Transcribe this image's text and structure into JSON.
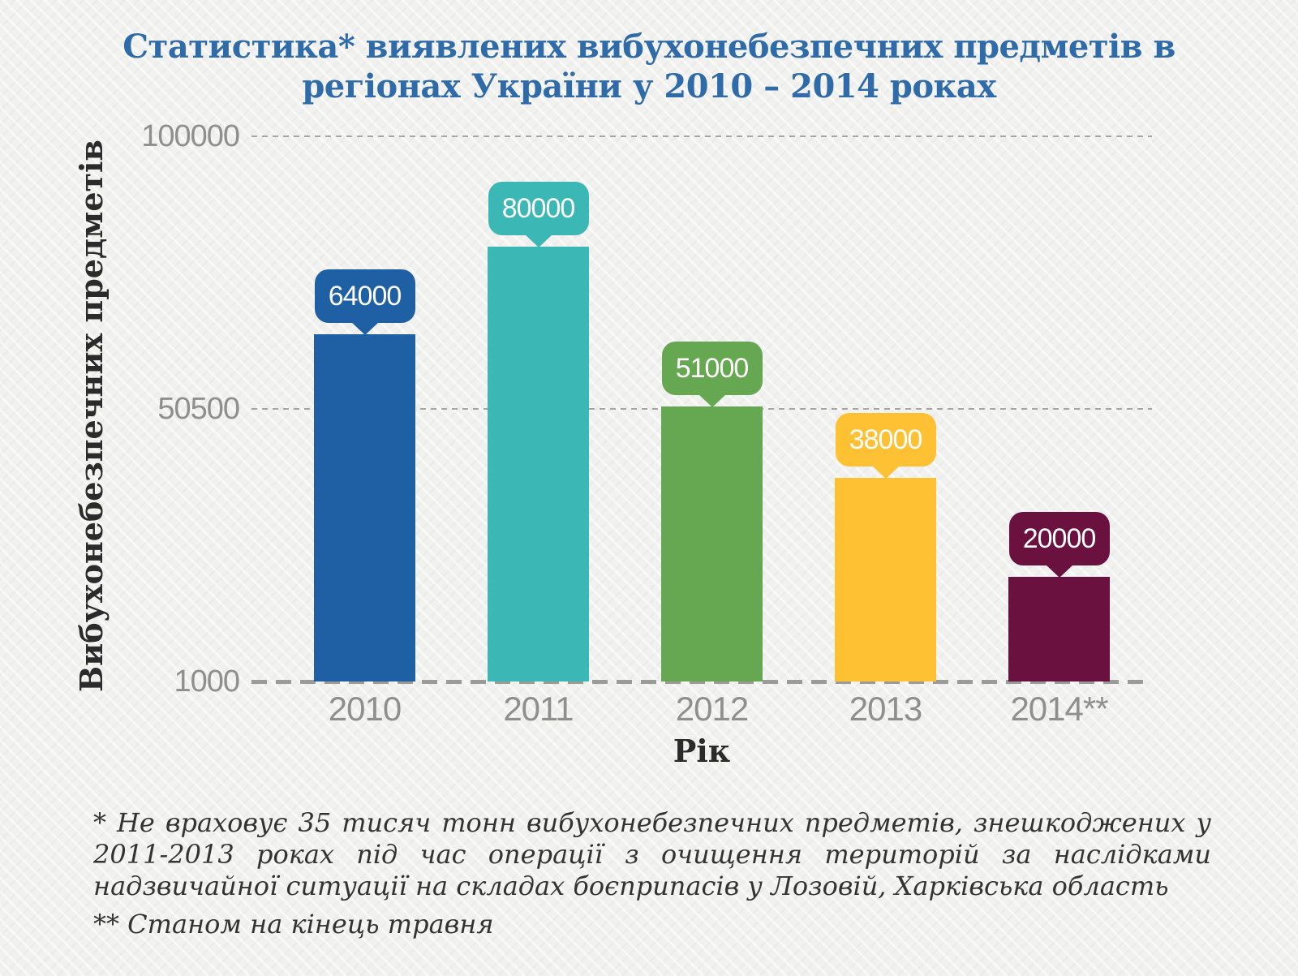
{
  "title": "Статистика* виявлених вибухонебезпечних предметів в\nрегіонах України у 2010 – 2014 роках",
  "chart_data": {
    "type": "bar",
    "title": "Статистика* виявлених вибухонебезпечних предметів в регіонах України у 2010 – 2014 роках",
    "categories": [
      "2010",
      "2011",
      "2012",
      "2013",
      "2014**"
    ],
    "values": [
      64000,
      80000,
      51000,
      38000,
      20000
    ],
    "data_labels": [
      "64000",
      "80000",
      "51000",
      "38000",
      "20000"
    ],
    "bar_colors": [
      "#1F5FA4",
      "#3BB7B5",
      "#66A751",
      "#FDC133",
      "#6A1140"
    ],
    "xlabel": "Рік",
    "ylabel": "Вибухонебезпечних предметів",
    "ylim": [
      1000,
      100000
    ],
    "y_ticks": [
      {
        "label": "100000",
        "value": 100000
      },
      {
        "label": "50500",
        "value": 50500
      },
      {
        "label": "1000",
        "value": 1000
      }
    ],
    "grid": "horizontal-dashed",
    "legend": "none"
  },
  "footnotes": {
    "first": "* Не враховує 35 тисяч тонн вибухонебезпечних предметів, знешкоджених у 2011-2013 роках під час операції з очищення територій за наслідками надзвичайної ситуації на складах боєприпасів у Лозовій, Харківська область",
    "second": "** Станом на кінець травня"
  },
  "colors": {
    "title_text": "#2E6BA8",
    "tick_text": "#8F8F8F",
    "axis_title_text": "#2B2B2B",
    "footnote_text": "#333333",
    "gridline": "#A6A6A6",
    "baseline": "#9B9B9B",
    "background": "#F1F1F0",
    "bubble_text": "#FFFFFF"
  }
}
